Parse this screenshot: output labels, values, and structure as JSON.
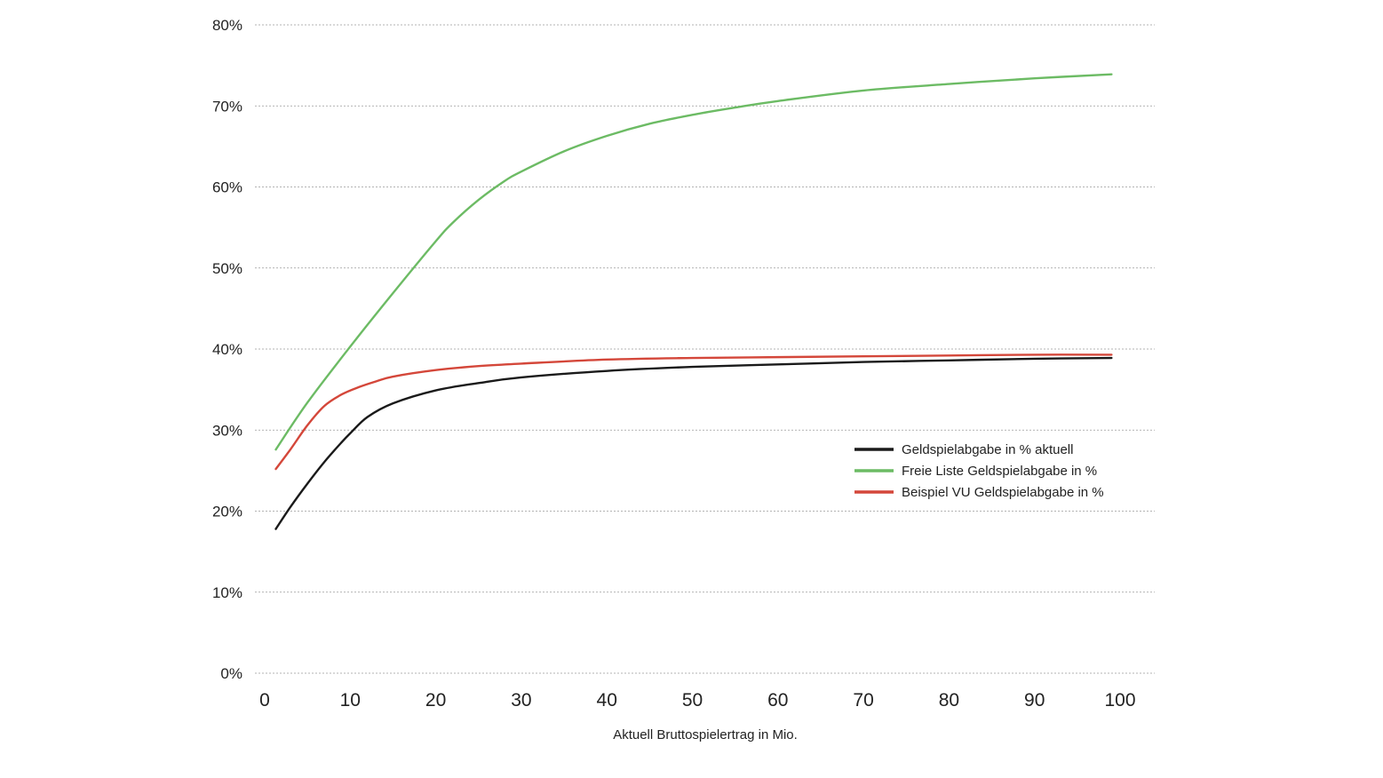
{
  "chart_data": {
    "type": "line",
    "title": "",
    "xlabel": "Aktuell Bruttospielertrag in Mio.",
    "ylabel": "",
    "xlim": [
      0,
      100
    ],
    "ylim": [
      0,
      80
    ],
    "x_ticks": [
      0,
      10,
      20,
      30,
      40,
      50,
      60,
      70,
      80,
      90,
      100
    ],
    "y_ticks": [
      0,
      10,
      20,
      30,
      40,
      50,
      60,
      70,
      80
    ],
    "y_tick_suffix": "%",
    "grid": "horizontal-dashed",
    "legend_position": "right-center",
    "series": [
      {
        "name": "Geldspielabgabe in % aktuell",
        "color": "#1a1a1a",
        "x": [
          1.3,
          3,
          5,
          7,
          9,
          10,
          12,
          15,
          20,
          25,
          30,
          40,
          50,
          60,
          70,
          80,
          90,
          99
        ],
        "y": [
          17.8,
          20.5,
          23.4,
          26.1,
          28.5,
          29.6,
          31.6,
          33.3,
          34.9,
          35.8,
          36.5,
          37.3,
          37.8,
          38.1,
          38.4,
          38.6,
          38.8,
          38.9
        ]
      },
      {
        "name": "Freie Liste Geldspielabgabe in %",
        "color": "#6cbb64",
        "x": [
          1.3,
          5,
          10,
          15,
          20,
          22,
          25,
          28,
          30,
          35,
          40,
          45,
          50,
          55,
          60,
          70,
          80,
          90,
          99
        ],
        "y": [
          27.6,
          33.4,
          40.3,
          46.9,
          53.3,
          55.6,
          58.4,
          60.7,
          61.9,
          64.4,
          66.3,
          67.8,
          68.9,
          69.8,
          70.6,
          71.9,
          72.7,
          73.4,
          73.9
        ]
      },
      {
        "name": "Beispiel VU Geldspielabgabe in %",
        "color": "#d4473a",
        "x": [
          1.3,
          3,
          5,
          7,
          9,
          11,
          13,
          15,
          20,
          25,
          30,
          40,
          50,
          60,
          70,
          80,
          90,
          99
        ],
        "y": [
          25.2,
          27.6,
          30.6,
          33.0,
          34.4,
          35.3,
          36.0,
          36.6,
          37.4,
          37.9,
          38.2,
          38.7,
          38.9,
          39.0,
          39.1,
          39.2,
          39.3,
          39.3
        ]
      }
    ]
  }
}
